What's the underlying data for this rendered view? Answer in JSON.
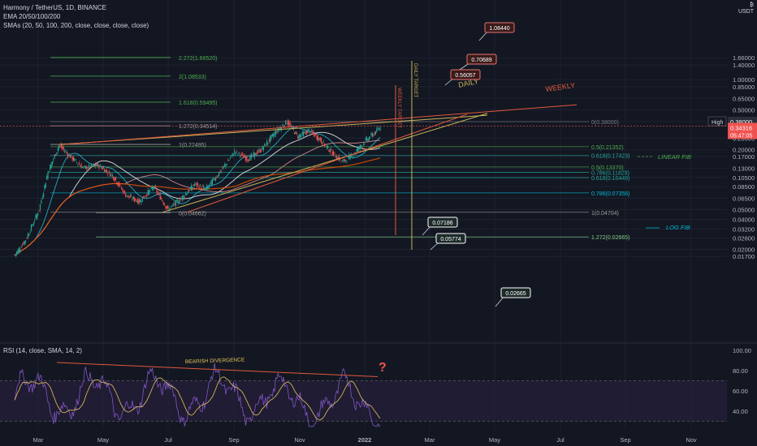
{
  "header": {
    "symbol": "Harmony / TetherUS, 1D, BINANCE",
    "ema": "EMA 20/50/100/200",
    "smas": "SMAs (20, 50, 100, 200, close, close, close, close)",
    "currency_top": "₿",
    "currency": "USDT"
  },
  "rsi_label": "RSI (14, close, SMA, 14, 2)",
  "colors": {
    "background": "#131722",
    "candle_up": "#26a69a",
    "candle_down": "#ef5350",
    "fib": "#8f9bb3",
    "trend_yellow": "#c9b458",
    "trend_red": "#e0593c",
    "rsi_line": "#7e57c2",
    "rsi_band": "#2a2040"
  },
  "chart_data": {
    "type": "candlestick",
    "title": "Harmony / TetherUS, 1D, BINANCE",
    "scale": "log",
    "ylim": [
      0.0155,
      1.6652
    ],
    "y_ticks": [
      "1.66000",
      "1.40000",
      "1.00000",
      "0.85000",
      "0.65000",
      "0.50000",
      "0.38000",
      "0.26000",
      "0.20000",
      "0.17000",
      "0.13000",
      "0.10500",
      "0.08500",
      "0.06500",
      "0.05000",
      "0.04000",
      "0.03200",
      "0.02600",
      "0.02000",
      "0.01700"
    ],
    "x_ticks": [
      "Mar",
      "May",
      "Jul",
      "Sep",
      "Nov",
      "2022",
      "Mar",
      "May",
      "Jul",
      "Sep",
      "Nov"
    ],
    "price_labels": {
      "high_label": "High",
      "high_value": "0.38000",
      "current_price": "0.34316",
      "countdown": "05:47:05"
    },
    "fib_levels": [
      {
        "label": "2.272(1.66520)",
        "value": 1.6652
      },
      {
        "label": "2(1.08533)",
        "value": 1.08533
      },
      {
        "label": "1.618(0.59495)",
        "value": 0.59495
      },
      {
        "label": "1.272(0.34514)",
        "value": 0.34514
      },
      {
        "label": "1(0.22495)",
        "value": 0.22495
      },
      {
        "label": "0(0.04662)",
        "value": 0.04662
      }
    ],
    "fib_levels_right": [
      {
        "label": "0(0.38000)",
        "value": 0.38
      },
      {
        "label": "0.5(0.21352)",
        "value": 0.21352
      },
      {
        "label": "0.618(0.17423)",
        "value": 0.17423
      },
      {
        "label": "0.5(0.13370)",
        "value": 0.1337
      },
      {
        "label": "0.786(0.11829)",
        "value": 0.11829
      },
      {
        "label": "0.618(0.10449)",
        "value": 0.10449
      },
      {
        "label": "0.786(0.07356)",
        "value": 0.07356
      },
      {
        "label": "1(0.04704)",
        "value": 0.04704
      },
      {
        "label": "1.272(0.02665)",
        "value": 0.02665
      }
    ],
    "targets": [
      "1.08440",
      "0.70689",
      "0.56057",
      "0.07186",
      "0.05774",
      "0.02665"
    ],
    "annotations": {
      "daily": "DAILY",
      "weekly": "WEEKLY",
      "daily_target": "DAILY TARGET",
      "weekly_target": "WEEKLY TARGET",
      "linear_fib": "LINEAR FIB",
      "log_fib": "LOG FIB",
      "bearish_divergence": "BEARISH DIVERGENCE",
      "question": "?"
    },
    "rsi_ticks": [
      "100.00",
      "80.00",
      "60.00",
      "40.00"
    ],
    "rsi_ylim": [
      20,
      100
    ]
  }
}
